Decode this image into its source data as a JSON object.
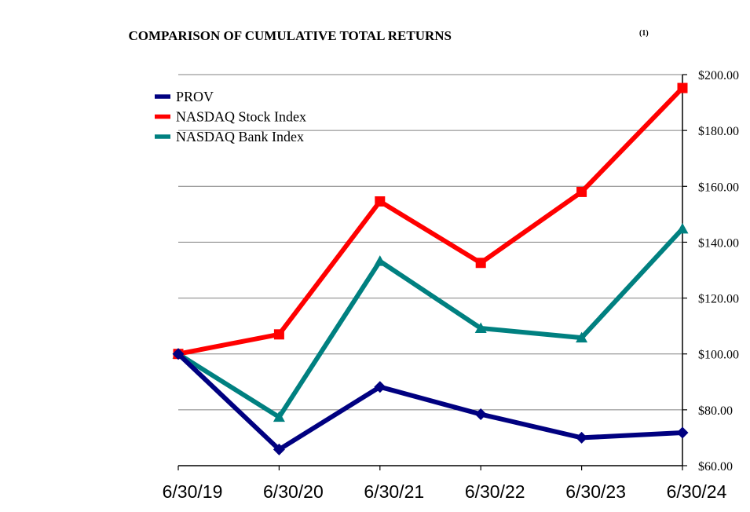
{
  "chart_data": {
    "type": "line",
    "title": "COMPARISON OF CUMULATIVE TOTAL RETURNS",
    "title_superscript": "(1)",
    "categories": [
      "6/30/19",
      "6/30/20",
      "6/30/21",
      "6/30/22",
      "6/30/23",
      "6/30/24"
    ],
    "ylim": [
      60,
      200
    ],
    "yticks": [
      60,
      80,
      100,
      120,
      140,
      160,
      180,
      200
    ],
    "ytick_labels": [
      "$60.00",
      "$80.00",
      "$100.00",
      "$120.00",
      "$140.00",
      "$160.00",
      "$180.00",
      "$200.00"
    ],
    "y_axis_side": "right",
    "grid": true,
    "legend_position": "top-left",
    "series": [
      {
        "name": "PROV",
        "color": "#000080",
        "marker": "diamond",
        "values": [
          100,
          65.8,
          88.2,
          78.4,
          70.0,
          71.8
        ]
      },
      {
        "name": "NASDAQ Stock Index",
        "color": "#ff0000",
        "marker": "square",
        "values": [
          100,
          107.0,
          154.6,
          132.6,
          158.0,
          195.2
        ]
      },
      {
        "name": "NASDAQ Bank Index",
        "color": "#008080",
        "marker": "triangle",
        "values": [
          100,
          77.4,
          133.2,
          109.2,
          105.8,
          144.8
        ]
      }
    ]
  }
}
